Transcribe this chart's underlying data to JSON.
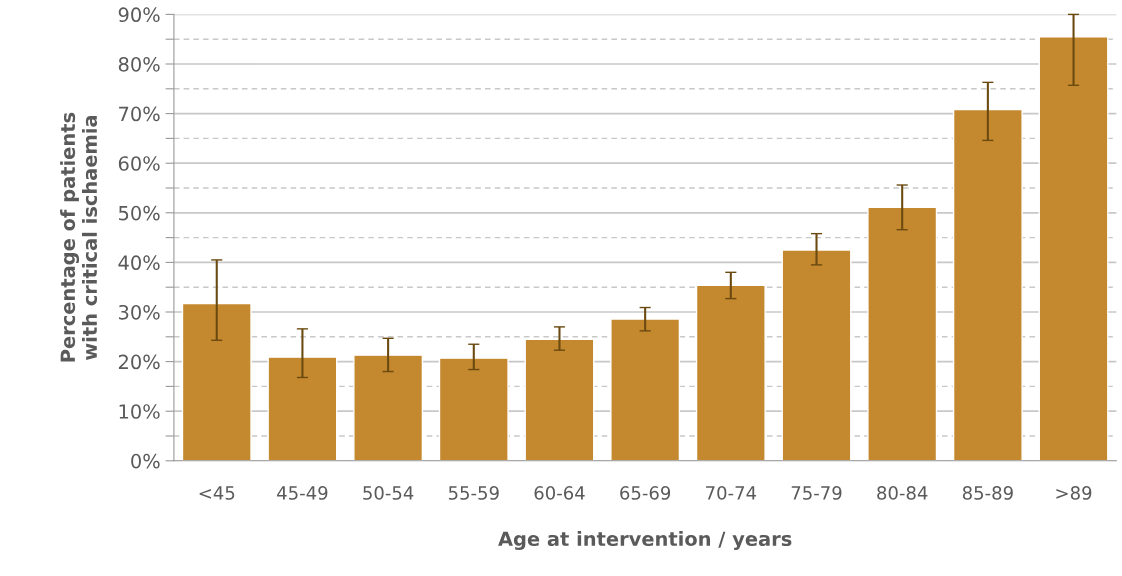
{
  "chart_data": {
    "type": "bar",
    "xlabel": "Age at intervention / years",
    "ylabel": "Percentage of patients\nwith critical ischaemia",
    "categories": [
      "<45",
      "45-49",
      "50-54",
      "55-59",
      "60-64",
      "65-69",
      "70-74",
      "75-79",
      "80-84",
      "85-89",
      ">89"
    ],
    "values": [
      31.7,
      20.9,
      21.3,
      20.7,
      24.5,
      28.6,
      35.4,
      42.5,
      51.1,
      70.8,
      85.5
    ],
    "errors": [
      [
        24.3,
        40.5
      ],
      [
        16.8,
        26.6
      ],
      [
        18.0,
        24.7
      ],
      [
        18.4,
        23.5
      ],
      [
        22.3,
        27.0
      ],
      [
        26.2,
        30.9
      ],
      [
        32.7,
        38.0
      ],
      [
        39.5,
        45.8
      ],
      [
        46.6,
        55.6
      ],
      [
        64.6,
        76.3
      ],
      [
        75.7,
        90
      ]
    ],
    "color": "#c4882f",
    "ylim": [
      0,
      90
    ],
    "yticks": [
      {
        "value": 0,
        "label": "0%"
      },
      {
        "value": 5,
        "label": null
      },
      {
        "value": 10,
        "label": "10%"
      },
      {
        "value": 15,
        "label": null
      },
      {
        "value": 20,
        "label": "20%"
      },
      {
        "value": 25,
        "label": null
      },
      {
        "value": 30,
        "label": "30%"
      },
      {
        "value": 35,
        "label": null
      },
      {
        "value": 40,
        "label": "40%"
      },
      {
        "value": 45,
        "label": null
      },
      {
        "value": 50,
        "label": "50%"
      },
      {
        "value": 55,
        "label": null
      },
      {
        "value": 60,
        "label": "60%"
      },
      {
        "value": 65,
        "label": null
      },
      {
        "value": 70,
        "label": "70%"
      },
      {
        "value": 75,
        "label": null
      },
      {
        "value": 80,
        "label": "80%"
      },
      {
        "value": 85,
        "label": null
      },
      {
        "value": 90,
        "label": "90%"
      }
    ],
    "grid": "y"
  }
}
